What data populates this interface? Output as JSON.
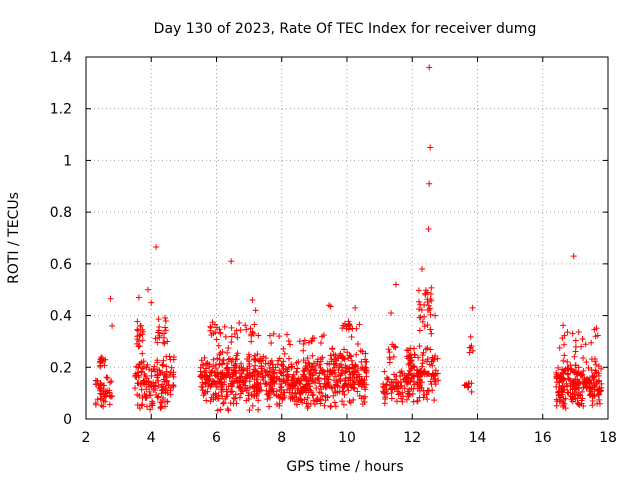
{
  "chart_data": {
    "type": "scatter",
    "title": "Day 130 of 2023, Rate Of TEC Index for receiver dumg",
    "xlabel": "GPS time / hours",
    "ylabel": "ROTI / TECUs",
    "xlim": [
      2,
      18
    ],
    "ylim": [
      0,
      1.4
    ],
    "x_ticks": [
      2,
      4,
      6,
      8,
      10,
      12,
      14,
      16,
      18
    ],
    "y_ticks": [
      0,
      0.2,
      0.4,
      0.6,
      0.8,
      1,
      1.2,
      1.4
    ],
    "x_tick_labels": [
      "2",
      "4",
      "6",
      "8",
      "10",
      "12",
      "14",
      "16",
      "18"
    ],
    "y_tick_labels": [
      "0",
      "0.2",
      "0.4",
      "0.6",
      "0.8",
      "1",
      "1.2",
      "1.4"
    ],
    "grid": true,
    "marker": "+",
    "marker_color": "#ff0000",
    "series": [
      {
        "name": "ROTI",
        "clusters": [
          {
            "x_range": [
              2.3,
              2.8
            ],
            "y_range": [
              0.04,
              0.17
            ],
            "count": 45
          },
          {
            "x_range": [
              2.4,
              2.6
            ],
            "y_range": [
              0.19,
              0.25
            ],
            "count": 14
          },
          {
            "x_range": [
              3.55,
              3.75
            ],
            "y_range": [
              0.25,
              0.4
            ],
            "count": 18
          },
          {
            "x_range": [
              3.5,
              4.7
            ],
            "y_range": [
              0.02,
              0.25
            ],
            "count": 150
          },
          {
            "x_range": [
              4.1,
              4.5
            ],
            "y_range": [
              0.25,
              0.4
            ],
            "count": 18
          },
          {
            "x_range": [
              5.5,
              7.5
            ],
            "y_range": [
              0.03,
              0.28
            ],
            "count": 300
          },
          {
            "x_range": [
              5.7,
              7.3
            ],
            "y_range": [
              0.28,
              0.38
            ],
            "count": 35
          },
          {
            "x_range": [
              7.5,
              9.5
            ],
            "y_range": [
              0.03,
              0.26
            ],
            "count": 300
          },
          {
            "x_range": [
              7.6,
              9.3
            ],
            "y_range": [
              0.26,
              0.34
            ],
            "count": 20
          },
          {
            "x_range": [
              9.5,
              10.6
            ],
            "y_range": [
              0.03,
              0.3
            ],
            "count": 170
          },
          {
            "x_range": [
              9.8,
              10.4
            ],
            "y_range": [
              0.3,
              0.4
            ],
            "count": 16
          },
          {
            "x_range": [
              11.1,
              11.8
            ],
            "y_range": [
              0.06,
              0.2
            ],
            "count": 60
          },
          {
            "x_range": [
              11.2,
              11.7
            ],
            "y_range": [
              0.2,
              0.33
            ],
            "count": 10
          },
          {
            "x_range": [
              11.8,
              12.8
            ],
            "y_range": [
              0.05,
              0.3
            ],
            "count": 140
          },
          {
            "x_range": [
              12.2,
              12.6
            ],
            "y_range": [
              0.3,
              0.56
            ],
            "count": 30
          },
          {
            "x_range": [
              13.6,
              13.85
            ],
            "y_range": [
              0.1,
              0.15
            ],
            "count": 10
          },
          {
            "x_range": [
              13.75,
              13.9
            ],
            "y_range": [
              0.24,
              0.34
            ],
            "count": 6
          },
          {
            "x_range": [
              16.4,
              17.8
            ],
            "y_range": [
              0.03,
              0.25
            ],
            "count": 230
          },
          {
            "x_range": [
              16.5,
              17.7
            ],
            "y_range": [
              0.25,
              0.37
            ],
            "count": 20
          }
        ],
        "outliers": [
          {
            "x": 2.75,
            "y": 0.465
          },
          {
            "x": 2.8,
            "y": 0.36
          },
          {
            "x": 3.62,
            "y": 0.47
          },
          {
            "x": 3.9,
            "y": 0.5
          },
          {
            "x": 4.15,
            "y": 0.665
          },
          {
            "x": 4.0,
            "y": 0.45
          },
          {
            "x": 6.45,
            "y": 0.61
          },
          {
            "x": 7.1,
            "y": 0.46
          },
          {
            "x": 7.2,
            "y": 0.42
          },
          {
            "x": 9.45,
            "y": 0.44
          },
          {
            "x": 9.5,
            "y": 0.435
          },
          {
            "x": 10.25,
            "y": 0.43
          },
          {
            "x": 11.5,
            "y": 0.52
          },
          {
            "x": 11.35,
            "y": 0.41
          },
          {
            "x": 12.3,
            "y": 0.58
          },
          {
            "x": 12.4,
            "y": 0.48
          },
          {
            "x": 12.5,
            "y": 0.735
          },
          {
            "x": 12.52,
            "y": 0.91
          },
          {
            "x": 12.55,
            "y": 1.05
          },
          {
            "x": 12.52,
            "y": 1.36
          },
          {
            "x": 12.7,
            "y": 0.4
          },
          {
            "x": 13.85,
            "y": 0.43
          },
          {
            "x": 16.95,
            "y": 0.63
          }
        ]
      }
    ]
  }
}
